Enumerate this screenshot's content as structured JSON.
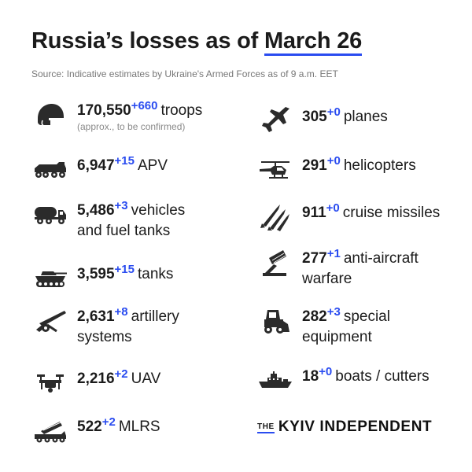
{
  "header": {
    "title_prefix": "Russia’s losses  as of ",
    "title_date": "March 26",
    "source": "Source: Indicative estimates by Ukraine's Armed Forces as of 9 a.m. EET"
  },
  "left": [
    {
      "icon": "helmet-icon",
      "value": "170,550",
      "delta": "+660",
      "label": "troops",
      "note": "(approx., to be confirmed)"
    },
    {
      "icon": "apv-icon",
      "value": "6,947",
      "delta": "+15",
      "label": "APV"
    },
    {
      "icon": "fuel-truck-icon",
      "value": "5,486",
      "delta": "+3",
      "label": "vehicles",
      "label2": "and fuel tanks"
    },
    {
      "icon": "tank-icon",
      "value": "3,595",
      "delta": "+15",
      "label": "tanks"
    },
    {
      "icon": "artillery-icon",
      "value": "2,631",
      "delta": "+8",
      "label": "artillery",
      "label2": "systems"
    },
    {
      "icon": "drone-icon",
      "value": "2,216",
      "delta": "+2",
      "label": "UAV"
    },
    {
      "icon": "mlrs-icon",
      "value": "522",
      "delta": "+2",
      "label": "MLRS"
    }
  ],
  "right": [
    {
      "icon": "plane-icon",
      "value": "305",
      "delta": "+0",
      "label": "planes"
    },
    {
      "icon": "helicopter-icon",
      "value": "291",
      "delta": "+0",
      "label": "helicopters"
    },
    {
      "icon": "missile-icon",
      "value": "911",
      "delta": "+0",
      "label": "cruise missiles"
    },
    {
      "icon": "anti-aircraft-icon",
      "value": "277",
      "delta": "+1",
      "label": "anti-aircraft",
      "label2": "warfare"
    },
    {
      "icon": "special-equipment-icon",
      "value": "282",
      "delta": "+3",
      "label": "special",
      "label2": "equipment"
    },
    {
      "icon": "boat-icon",
      "value": "18",
      "delta": "+0",
      "label": "boats / cutters"
    }
  ],
  "logo": {
    "the": "THE",
    "name": "KYIV INDEPENDENT"
  },
  "colors": {
    "accent": "#2a4cf0",
    "icon": "#2b2b2b"
  }
}
